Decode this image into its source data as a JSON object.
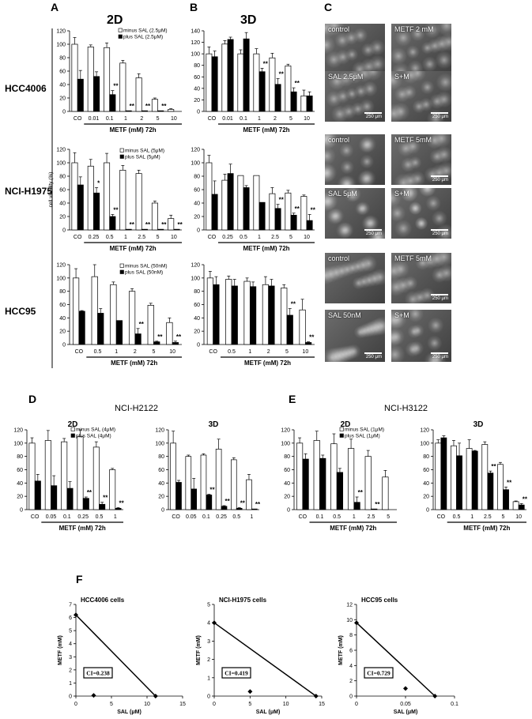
{
  "panel_letters": [
    "A",
    "B",
    "C",
    "D",
    "E",
    "F"
  ],
  "row_labels": [
    "HCC4006",
    "NCI-H1975",
    "HCC95"
  ],
  "col_titles": {
    "a": "2D",
    "b": "3D"
  },
  "ylabel_viability": "cell viability (%)",
  "d_title": "NCI-H2122",
  "e_title": "NCI-H3122",
  "micrographs": [
    {
      "label": "control",
      "scale": ""
    },
    {
      "label": "METF 2 mM",
      "scale": ""
    },
    {
      "label": "SAL 2.5μM",
      "scale": "250 μm"
    },
    {
      "label": "S+M",
      "scale": "250 μm"
    },
    {
      "label": "control",
      "scale": ""
    },
    {
      "label": "METF 5mM",
      "scale": "250 μm"
    },
    {
      "label": "SAL 5μM",
      "scale": "250 μm"
    },
    {
      "label": "S+M",
      "scale": "250 μm"
    },
    {
      "label": "control",
      "scale": ""
    },
    {
      "label": "METF 5mM",
      "scale": "250 μm"
    },
    {
      "label": "SAL 50nM",
      "scale": "250 μm"
    },
    {
      "label": "S+M",
      "scale": "250 μm"
    }
  ],
  "colors": {
    "minus": "#ffffff",
    "plus": "#000000",
    "stroke": "#000000"
  },
  "chart_data": [
    {
      "id": "A1",
      "type": "bar",
      "title": "",
      "xlabel": "METF (mM) 72h",
      "ylim": [
        0,
        120
      ],
      "yticks": [
        0,
        20,
        40,
        60,
        80,
        100,
        120
      ],
      "categories": [
        "CO",
        "0.01",
        "0.1",
        "1",
        "2",
        "5",
        "10"
      ],
      "legend": [
        "minus SAL (2.5μM)",
        "plus SAL (2.5μM)"
      ],
      "series": [
        {
          "name": "minus SAL (2.5μM)",
          "values": [
            100,
            96,
            95,
            72,
            50,
            18,
            3
          ],
          "err": [
            10,
            3,
            7,
            4,
            6,
            2,
            1
          ]
        },
        {
          "name": "plus SAL (2.5μM)",
          "values": [
            48,
            52,
            25,
            1,
            1,
            1,
            0
          ],
          "err": [
            13,
            7,
            6,
            0,
            0,
            0,
            0
          ]
        }
      ],
      "sig": [
        "",
        "",
        "**",
        "**",
        "**",
        "**",
        ""
      ]
    },
    {
      "id": "B1",
      "type": "bar",
      "title": "",
      "xlabel": "METF (mM) 72h",
      "ylim": [
        0,
        140
      ],
      "yticks": [
        0,
        20,
        40,
        60,
        80,
        100,
        120,
        140
      ],
      "categories": [
        "CO",
        "0.01",
        "0.1",
        "1",
        "2",
        "5",
        "10"
      ],
      "series": [
        {
          "name": "minus SAL",
          "values": [
            100,
            117,
            100,
            100,
            93,
            79,
            27
          ],
          "err": [
            12,
            6,
            7,
            9,
            8,
            3,
            10
          ]
        },
        {
          "name": "plus SAL",
          "values": [
            95,
            125,
            126,
            69,
            47,
            34,
            27
          ],
          "err": [
            10,
            4,
            11,
            6,
            10,
            7,
            7
          ]
        }
      ],
      "sig": [
        "",
        "",
        "",
        "**",
        "**",
        "**",
        ""
      ]
    },
    {
      "id": "A2",
      "type": "bar",
      "title": "",
      "ylabel": "cell viability (%)",
      "xlabel": "METF (mM) 72h",
      "ylim": [
        0,
        120
      ],
      "yticks": [
        0,
        20,
        40,
        60,
        80,
        100,
        120
      ],
      "categories": [
        "CO",
        "0.25",
        "0.5",
        "1",
        "2.5",
        "5",
        "10"
      ],
      "legend": [
        "minus SAL (5μM)",
        "plus SAL (5μM)"
      ],
      "series": [
        {
          "name": "minus SAL (5μM)",
          "values": [
            100,
            95,
            100,
            89,
            84,
            40,
            17
          ],
          "err": [
            15,
            10,
            14,
            7,
            5,
            3,
            5
          ]
        },
        {
          "name": "plus SAL (5μM)",
          "values": [
            67,
            55,
            20,
            1,
            1,
            1,
            1
          ],
          "err": [
            12,
            8,
            3,
            0,
            0,
            0,
            0
          ]
        }
      ],
      "sig": [
        "",
        "*",
        "**",
        "**",
        "**",
        "**",
        "**"
      ]
    },
    {
      "id": "B2",
      "type": "bar",
      "title": "",
      "xlabel": "METF (mM) 72h",
      "ylim": [
        0,
        120
      ],
      "yticks": [
        0,
        20,
        40,
        60,
        80,
        100,
        120
      ],
      "categories": [
        "CO",
        "0.25",
        "0.5",
        "1",
        "2.5",
        "5",
        "10"
      ],
      "series": [
        {
          "name": "minus SAL",
          "values": [
            100,
            74,
            81,
            81,
            54,
            55,
            50
          ],
          "err": [
            11,
            9,
            0,
            0,
            9,
            4,
            2
          ]
        },
        {
          "name": "plus SAL",
          "values": [
            53,
            84,
            63,
            41,
            32,
            22,
            14
          ],
          "err": [
            20,
            14,
            3,
            0,
            6,
            3,
            9
          ]
        }
      ],
      "sig": [
        "",
        "",
        "",
        "",
        "**",
        "**",
        "**"
      ]
    },
    {
      "id": "A3",
      "type": "bar",
      "title": "",
      "xlabel": "METF (mM) 72h",
      "ylim": [
        0,
        120
      ],
      "yticks": [
        0,
        20,
        40,
        60,
        80,
        100,
        120
      ],
      "categories": [
        "CO",
        "0.5",
        "1",
        "2",
        "5",
        "10"
      ],
      "legend": [
        "minus SAL (50nM)",
        "plus SAL (50nM)"
      ],
      "series": [
        {
          "name": "minus SAL (50nM)",
          "values": [
            100,
            102,
            90,
            80,
            59,
            33
          ],
          "err": [
            14,
            18,
            4,
            4,
            3,
            7
          ]
        },
        {
          "name": "plus SAL (50nM)",
          "values": [
            50,
            47,
            36,
            16,
            4,
            3
          ],
          "err": [
            1,
            7,
            0,
            8,
            1,
            2
          ]
        }
      ],
      "sig": [
        "",
        "",
        "",
        "**",
        "**",
        "**"
      ]
    },
    {
      "id": "B3",
      "type": "bar",
      "title": "",
      "xlabel": "METF (mM) 72h",
      "ylim": [
        0,
        120
      ],
      "yticks": [
        0,
        20,
        40,
        60,
        80,
        100,
        120
      ],
      "categories": [
        "CO",
        "0.5",
        "1",
        "2",
        "5",
        "10"
      ],
      "series": [
        {
          "name": "minus SAL",
          "values": [
            100,
            98,
            95,
            90,
            85,
            52
          ],
          "err": [
            10,
            5,
            5,
            12,
            5,
            16
          ]
        },
        {
          "name": "plus SAL",
          "values": [
            90,
            88,
            87,
            88,
            44,
            3
          ],
          "err": [
            12,
            10,
            7,
            10,
            10,
            1
          ]
        }
      ],
      "sig": [
        "",
        "",
        "",
        "",
        "**",
        "**"
      ]
    },
    {
      "id": "D1",
      "type": "bar",
      "title": "2D",
      "xlabel": "METF (mM) 72h",
      "ylim": [
        0,
        120
      ],
      "yticks": [
        0,
        20,
        40,
        60,
        80,
        100,
        120
      ],
      "categories": [
        "CO",
        "0.05",
        "0.1",
        "0.25",
        "0.5",
        "1"
      ],
      "legend": [
        "minus SAL (4μM)",
        "plus SAL (4μM)"
      ],
      "series": [
        {
          "name": "minus SAL (4μM)",
          "values": [
            100,
            104,
            102,
            110,
            94,
            60
          ],
          "err": [
            8,
            15,
            5,
            10,
            8,
            2
          ]
        },
        {
          "name": "plus SAL (4μM)",
          "values": [
            43,
            36,
            32,
            17,
            8,
            2
          ],
          "err": [
            10,
            15,
            10,
            2,
            3,
            1
          ]
        }
      ],
      "sig": [
        "",
        "",
        "",
        "**",
        "**",
        "**"
      ]
    },
    {
      "id": "D2",
      "type": "bar",
      "title": "3D",
      "xlabel": "",
      "ylim": [
        0,
        120
      ],
      "yticks": [
        0,
        20,
        40,
        60,
        80,
        100,
        120
      ],
      "categories": [
        "CO",
        "0.05",
        "0.1",
        "0.25",
        "0.5",
        "1"
      ],
      "series": [
        {
          "name": "minus SAL",
          "values": [
            100,
            80,
            82,
            91,
            75,
            45
          ],
          "err": [
            18,
            2,
            2,
            15,
            3,
            8
          ]
        },
        {
          "name": "plus SAL",
          "values": [
            41,
            31,
            22,
            5,
            2,
            1
          ],
          "err": [
            3,
            16,
            1,
            1,
            1,
            0
          ]
        }
      ],
      "sig": [
        "",
        "",
        "**",
        "**",
        "**",
        "**"
      ]
    },
    {
      "id": "E1",
      "type": "bar",
      "title": "2D",
      "xlabel": "METF (mM) 72h",
      "ylim": [
        0,
        120
      ],
      "yticks": [
        0,
        20,
        40,
        60,
        80,
        100,
        120
      ],
      "categories": [
        "CO",
        "0.1",
        "0.5",
        "1",
        "2.5",
        "5"
      ],
      "legend": [
        "minus SAL (1μM)",
        "plus SAL (1μM)"
      ],
      "series": [
        {
          "name": "minus SAL (1μM)",
          "values": [
            100,
            104,
            99,
            92,
            80,
            49
          ],
          "err": [
            8,
            14,
            15,
            14,
            9,
            10
          ]
        },
        {
          "name": "plus SAL (1μM)",
          "values": [
            76,
            77,
            56,
            11,
            1,
            0
          ],
          "err": [
            8,
            5,
            6,
            8,
            0,
            0
          ]
        }
      ],
      "sig": [
        "",
        "",
        "",
        "**",
        "**",
        ""
      ]
    },
    {
      "id": "E2",
      "type": "bar",
      "title": "3D",
      "xlabel": "METF (mM) 72h",
      "ylim": [
        0,
        120
      ],
      "yticks": [
        0,
        20,
        40,
        60,
        80,
        100,
        120
      ],
      "categories": [
        "CO",
        "0.5",
        "1",
        "2.5",
        "5",
        "10"
      ],
      "series": [
        {
          "name": "minus SAL",
          "values": [
            100,
            96,
            92,
            98,
            68,
            12
          ],
          "err": [
            5,
            8,
            13,
            4,
            3,
            1
          ]
        },
        {
          "name": "plus SAL",
          "values": [
            108,
            81,
            88,
            55,
            30,
            7
          ],
          "err": [
            3,
            19,
            1,
            3,
            4,
            2
          ]
        }
      ],
      "sig": [
        "",
        "",
        "",
        "**",
        "**",
        "**"
      ]
    },
    {
      "id": "F1",
      "type": "scatter",
      "title": "HCC4006 cells",
      "xlabel": "SAL (μM)",
      "ylabel": "METF (mM)",
      "xlim": [
        0,
        15
      ],
      "ylim": [
        0,
        7
      ],
      "xticks": [
        0,
        5,
        10,
        15
      ],
      "yticks": [
        0,
        1,
        2,
        3,
        4,
        5,
        6,
        7
      ],
      "isobole": [
        [
          0,
          6.2
        ],
        [
          11.2,
          0
        ]
      ],
      "point": [
        2.5,
        0.05
      ],
      "ci": "CI=0.238"
    },
    {
      "id": "F2",
      "type": "scatter",
      "title": "NCI-H1975 cells",
      "xlabel": "SAL (μM)",
      "ylabel": "METF (mM)",
      "xlim": [
        0,
        15
      ],
      "ylim": [
        0,
        5
      ],
      "xticks": [
        0,
        5,
        10,
        15
      ],
      "yticks": [
        0,
        1,
        2,
        3,
        4,
        5
      ],
      "isobole": [
        [
          0,
          4
        ],
        [
          14.2,
          0
        ]
      ],
      "point": [
        5,
        0.25
      ],
      "ci": "CI=0.419"
    },
    {
      "id": "F3",
      "type": "scatter",
      "title": "HCC95 cells",
      "xlabel": "SAL (μM)",
      "ylabel": "METF (mM)",
      "xlim": [
        0,
        0.1
      ],
      "ylim": [
        0,
        12
      ],
      "xticks": [
        0,
        0.05,
        0.1
      ],
      "yticks": [
        0,
        2,
        4,
        6,
        8,
        10,
        12
      ],
      "isobole": [
        [
          0,
          9.6
        ],
        [
          0.08,
          0
        ]
      ],
      "point": [
        0.05,
        1
      ],
      "ci": "CI=0.729"
    }
  ]
}
